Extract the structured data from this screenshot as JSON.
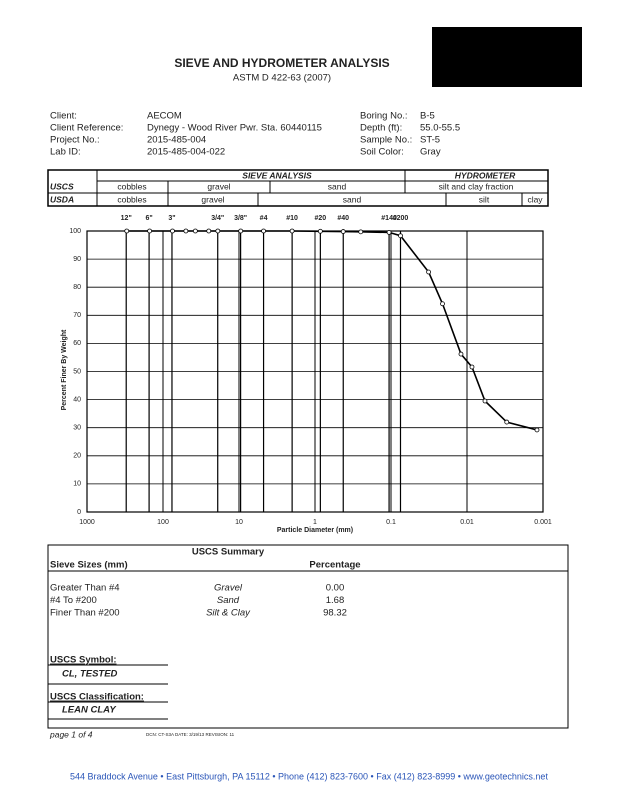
{
  "header": {
    "title": "SIEVE AND HYDROMETER ANALYSIS",
    "subtitle": "ASTM D 422-63 (2007)"
  },
  "info": {
    "left": [
      [
        "Client:",
        "AECOM"
      ],
      [
        "Client Reference:",
        "Dynegy - Wood River Pwr. Sta. 60440115"
      ],
      [
        "Project No.:",
        "2015-485-004"
      ],
      [
        "Lab ID:",
        "2015-485-004-022"
      ]
    ],
    "right": [
      [
        "Boring No.:",
        "B-5"
      ],
      [
        "Depth (ft):",
        "55.0-55.5"
      ],
      [
        "Sample No.:",
        "ST-5"
      ],
      [
        "Soil Color:",
        "Gray"
      ]
    ]
  },
  "classification": {
    "sieve_analysis": "SIEVE ANALYSIS",
    "hydrometer": "HYDROMETER",
    "uscs": {
      "label": "USCS",
      "cells": [
        "cobbles",
        "gravel",
        "sand",
        "silt and clay fraction"
      ]
    },
    "usda": {
      "label": "USDA",
      "cells": [
        "cobbles",
        "gravel",
        "sand",
        "silt",
        "clay"
      ]
    }
  },
  "chart_data": {
    "type": "line",
    "log_x": true,
    "color": "#000000",
    "xlabel": "Particle Diameter (mm)",
    "ylabel": "Percent Finer By Weight",
    "x": [
      300,
      150,
      75,
      50,
      37.5,
      25,
      19,
      9.5,
      4.75,
      2,
      0.85,
      0.425,
      0.25,
      0.106,
      0.075,
      0.032,
      0.021,
      0.012,
      0.0086,
      0.0058,
      0.003,
      0.0012
    ],
    "values": [
      100,
      100,
      100,
      100,
      100,
      100,
      100,
      100,
      100,
      100,
      99.9,
      99.8,
      99.7,
      99.5,
      98.32,
      85.4,
      74.1,
      56.2,
      51.6,
      39.5,
      32.0,
      29.2
    ],
    "xlim": [
      1000,
      0.001
    ],
    "xticks": [
      1000,
      100,
      10,
      1,
      0.1,
      0.01,
      0.001
    ],
    "ylim": [
      0,
      100
    ],
    "yticks": [
      0,
      10,
      20,
      30,
      40,
      50,
      60,
      70,
      80,
      90,
      100
    ],
    "grid": true,
    "sieve_ticks": [
      {
        "value": 304.8,
        "label": "12\""
      },
      {
        "value": 152.4,
        "label": "6\""
      },
      {
        "value": 76.2,
        "label": "3\""
      },
      {
        "value": 19.05,
        "label": "3/4\""
      },
      {
        "value": 9.525,
        "label": "3/8\""
      },
      {
        "value": 4.75,
        "label": "#4"
      },
      {
        "value": 2.0,
        "label": "#10"
      },
      {
        "value": 0.85,
        "label": "#20"
      },
      {
        "value": 0.425,
        "label": "#40"
      },
      {
        "value": 0.106,
        "label": "#140"
      },
      {
        "value": 0.075,
        "label": "#200"
      }
    ]
  },
  "summary": {
    "title": "USCS Summary",
    "col1": "Sieve Sizes (mm)",
    "col3": "Percentage",
    "rows": [
      [
        "Greater Than #4",
        "Gravel",
        "0.00"
      ],
      [
        "#4 To #200",
        "Sand",
        "1.68"
      ],
      [
        "Finer Than #200",
        "Silt & Clay",
        "98.32"
      ]
    ],
    "symbol_label": "USCS Symbol:",
    "symbol": "CL, TESTED",
    "class_label": "USCS Classification:",
    "class": "LEAN CLAY"
  },
  "footer": {
    "page": "page 1 of 4",
    "doc": "DCN: CT-S3A  DATE: 3/19/13  REVISION: 11",
    "address": "544 Braddock Avenue  •  East Pittsburgh, PA  15112  •  Phone  (412) 823-7600  •  Fax (412) 823-8999  •  www.geotechnics.net"
  }
}
